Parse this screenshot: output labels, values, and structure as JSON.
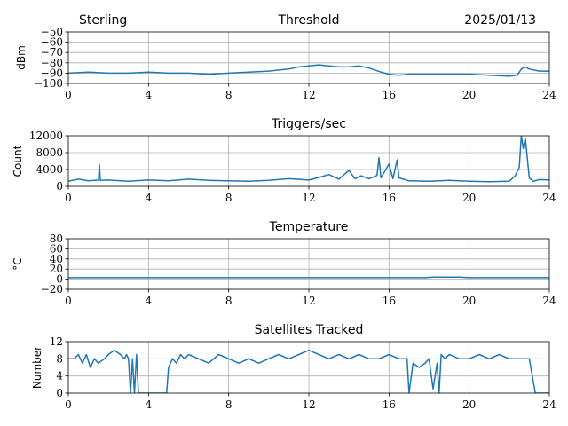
{
  "header": {
    "station": "Sterling",
    "date": "2025/01/13"
  },
  "colors": {
    "series": "#1f77b4"
  },
  "chart_data": [
    {
      "type": "line",
      "title": "Threshold",
      "ylabel": "dBm",
      "xlabel": "",
      "xlim": [
        0,
        24
      ],
      "ylim": [
        -100,
        -50
      ],
      "xticks": [
        "0",
        "4",
        "8",
        "12",
        "16",
        "20",
        "24"
      ],
      "yticks": [
        "−100",
        "−90",
        "−80",
        "−70",
        "−60",
        "−50"
      ],
      "ytick_values": [
        -100,
        -90,
        -80,
        -70,
        -60,
        -50
      ],
      "grid": true,
      "series": [
        {
          "x": [
            0,
            1,
            2,
            3,
            4,
            5,
            6,
            7,
            8,
            9,
            10,
            11,
            11.5,
            12,
            12.5,
            13,
            13.5,
            14,
            14.5,
            15,
            15.3,
            15.6,
            16,
            16.5,
            17,
            18,
            19,
            20,
            21,
            22,
            22.4,
            22.6,
            22.8,
            23,
            23.5,
            24
          ],
          "y": [
            -90,
            -89,
            -90,
            -90,
            -89,
            -90,
            -90,
            -91,
            -90,
            -89,
            -88,
            -86,
            -84,
            -83,
            -82,
            -83,
            -84,
            -84,
            -83,
            -85,
            -87,
            -89,
            -91,
            -92,
            -91,
            -91,
            -91,
            -91,
            -92,
            -93,
            -92,
            -86,
            -84,
            -86,
            -88,
            -88
          ]
        }
      ]
    },
    {
      "type": "line",
      "title": "Triggers/sec",
      "ylabel": "Count",
      "xlabel": "",
      "xlim": [
        0,
        24
      ],
      "ylim": [
        0,
        12000
      ],
      "xticks": [
        "0",
        "4",
        "8",
        "12",
        "16",
        "20",
        "24"
      ],
      "yticks": [
        "0",
        "4000",
        "8000",
        "12000"
      ],
      "ytick_values": [
        0,
        4000,
        8000,
        12000
      ],
      "grid": true,
      "series": [
        {
          "x": [
            0,
            0.5,
            1,
            1.5,
            1.55,
            1.6,
            2,
            3,
            4,
            5,
            6,
            7,
            8,
            9,
            10,
            11,
            12,
            12.5,
            13,
            13.5,
            14,
            14.3,
            14.6,
            15,
            15.4,
            15.5,
            15.6,
            16,
            16.2,
            16.4,
            16.5,
            17,
            18,
            19,
            20,
            21,
            22,
            22.3,
            22.5,
            22.6,
            22.7,
            22.8,
            23,
            23.2,
            23.5,
            24
          ],
          "y": [
            1200,
            1700,
            1300,
            1500,
            5200,
            1400,
            1500,
            1200,
            1500,
            1300,
            1700,
            1400,
            1300,
            1200,
            1400,
            1800,
            1500,
            2100,
            2800,
            1700,
            3800,
            1800,
            2500,
            1800,
            2600,
            6800,
            2000,
            5300,
            1800,
            6300,
            2000,
            1300,
            1200,
            1400,
            1200,
            1100,
            1200,
            2500,
            4500,
            12000,
            9000,
            11500,
            2000,
            1200,
            1600,
            1500
          ]
        }
      ]
    },
    {
      "type": "line",
      "title": "Temperature",
      "ylabel": "°C",
      "xlabel": "",
      "xlim": [
        0,
        24
      ],
      "ylim": [
        -20,
        80
      ],
      "xticks": [
        "0",
        "4",
        "8",
        "12",
        "16",
        "20",
        "24"
      ],
      "yticks": [
        "−20",
        "0",
        "20",
        "40",
        "60",
        "80"
      ],
      "ytick_values": [
        -20,
        0,
        20,
        40,
        60,
        80
      ],
      "grid": true,
      "series": [
        {
          "x": [
            0,
            4,
            8,
            12,
            16,
            17.8,
            18.2,
            19,
            19.5,
            20,
            24
          ],
          "y": [
            3,
            3,
            3,
            3,
            3,
            3,
            4,
            4,
            4,
            3,
            3
          ]
        }
      ]
    },
    {
      "type": "line",
      "title": "Satellites Tracked",
      "ylabel": "Number",
      "xlabel": "",
      "xlim": [
        0,
        24
      ],
      "ylim": [
        0,
        12
      ],
      "xticks": [
        "0",
        "4",
        "8",
        "12",
        "16",
        "20",
        "24"
      ],
      "yticks": [
        "0",
        "4",
        "8",
        "12"
      ],
      "ytick_values": [
        0,
        4,
        8,
        12
      ],
      "grid": true,
      "series": [
        {
          "x": [
            0,
            0.3,
            0.5,
            0.7,
            0.9,
            1.1,
            1.3,
            1.5,
            1.8,
            2.0,
            2.3,
            2.6,
            2.8,
            2.9,
            3.0,
            3.1,
            3.2,
            3.3,
            3.4,
            3.5,
            3.6,
            4.0,
            4.5,
            4.9,
            5.0,
            5.2,
            5.4,
            5.6,
            5.8,
            6.0,
            6.5,
            7.0,
            7.5,
            8.0,
            8.5,
            9.0,
            9.5,
            10.0,
            10.5,
            11.0,
            11.5,
            12.0,
            12.5,
            13.0,
            13.5,
            14.0,
            14.5,
            15.0,
            15.5,
            16.0,
            16.5,
            16.9,
            17.0,
            17.2,
            17.5,
            17.8,
            18.0,
            18.2,
            18.4,
            18.5,
            18.6,
            18.8,
            19.0,
            19.5,
            20.0,
            20.5,
            21.0,
            21.5,
            22.0,
            22.5,
            23.0,
            23.3,
            23.5,
            24.0
          ],
          "y": [
            8,
            8,
            9,
            7,
            9,
            6,
            8,
            7,
            8,
            9,
            10,
            9,
            8,
            9,
            8,
            0,
            8,
            0,
            9,
            0,
            0,
            0,
            0,
            0,
            6,
            8,
            7,
            9,
            8,
            9,
            8,
            7,
            9,
            8,
            7,
            8,
            7,
            8,
            9,
            8,
            9,
            10,
            9,
            8,
            9,
            8,
            9,
            8,
            8,
            9,
            8,
            8,
            0,
            7,
            6,
            7,
            8,
            1,
            7,
            0,
            9,
            8,
            9,
            8,
            8,
            9,
            8,
            9,
            8,
            8,
            8,
            0,
            0,
            0
          ]
        }
      ]
    }
  ]
}
